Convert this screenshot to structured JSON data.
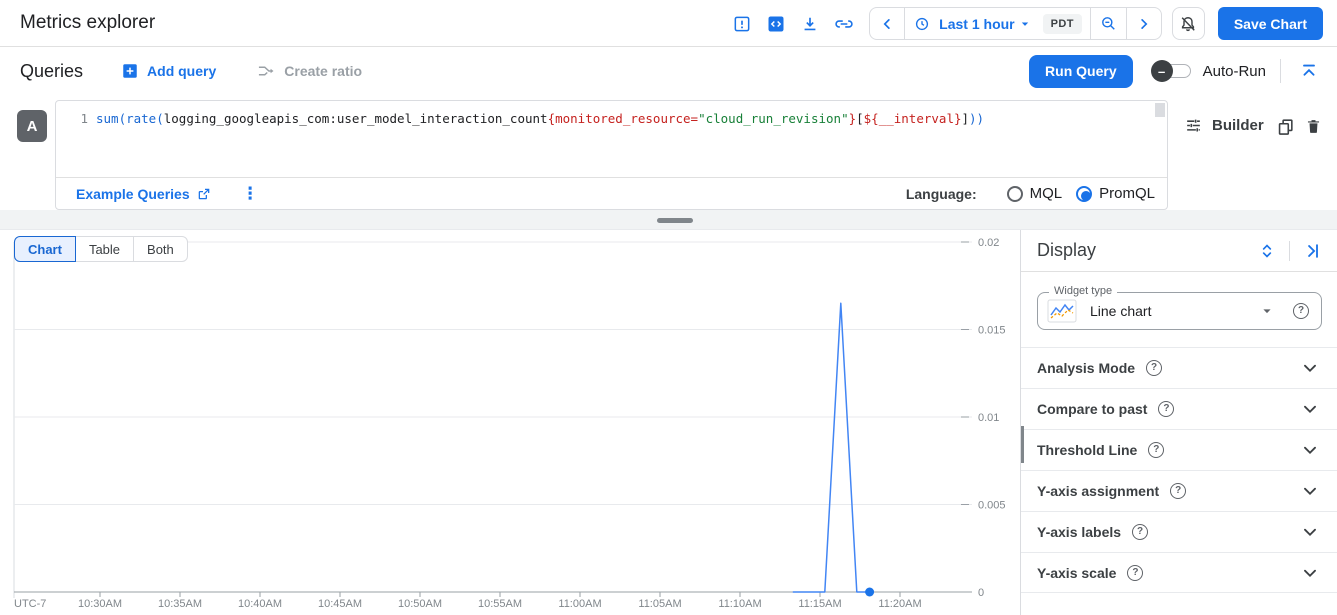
{
  "header": {
    "title": "Metrics explorer",
    "time_range_label": "Last 1 hour",
    "timezone_badge": "PDT",
    "save_button_label": "Save Chart"
  },
  "queries_bar": {
    "title": "Queries",
    "add_query_label": "Add query",
    "create_ratio_label": "Create ratio",
    "run_query_label": "Run Query",
    "auto_run_label": "Auto-Run"
  },
  "query_editor": {
    "query_letter": "A",
    "line_number": "1",
    "code_tokens": [
      {
        "text": "sum(",
        "color": "#1967d2"
      },
      {
        "text": "rate(",
        "color": "#1967d2"
      },
      {
        "text": "logging_googleapis_com:user_model_interaction_count",
        "color": "#202124"
      },
      {
        "text": "{monitored_resource=",
        "color": "#c5221f"
      },
      {
        "text": "\"cloud_run_revision\"",
        "color": "#188038"
      },
      {
        "text": "}",
        "color": "#c5221f"
      },
      {
        "text": "[",
        "color": "#202124"
      },
      {
        "text": "${__interval}",
        "color": "#c5221f"
      },
      {
        "text": "]",
        "color": "#202124"
      },
      {
        "text": "))",
        "color": "#1967d2"
      }
    ],
    "example_queries_label": "Example Queries",
    "language_label": "Language:",
    "languages": [
      {
        "label": "MQL",
        "selected": false
      },
      {
        "label": "PromQL",
        "selected": true
      }
    ],
    "builder_label": "Builder"
  },
  "view_tabs": [
    {
      "label": "Chart",
      "selected": true
    },
    {
      "label": "Table",
      "selected": false
    },
    {
      "label": "Both",
      "selected": false
    }
  ],
  "display_panel": {
    "title": "Display",
    "widget_type_legend": "Widget type",
    "widget_type_value": "Line chart",
    "sections": [
      {
        "label": "Analysis Mode"
      },
      {
        "label": "Compare to past"
      },
      {
        "label": "Threshold Line"
      },
      {
        "label": "Y-axis assignment"
      },
      {
        "label": "Y-axis labels"
      },
      {
        "label": "Y-axis scale"
      }
    ]
  },
  "icons": {
    "more_vert_glyph": "⋮",
    "toggle_off_glyph": "–",
    "help_glyph": "?"
  },
  "colors": {
    "accent_blue": "#1a73e8",
    "series_line_blue": "#4285f4",
    "selected_tab_bg": "#e8f0fe",
    "grid_gray": "#e8eaed",
    "axis_gray": "#9aa0a6"
  },
  "chart_data": {
    "type": "line",
    "title": "",
    "xlabel": "",
    "ylabel": "",
    "legend": "none",
    "grid": true,
    "x_axis": {
      "timezone_label": "UTC-7",
      "tick_labels": [
        "10:30AM",
        "10:35AM",
        "10:40AM",
        "10:45AM",
        "10:50AM",
        "10:55AM",
        "11:00AM",
        "11:05AM",
        "11:10AM",
        "11:15AM",
        "11:20AM"
      ],
      "tick_minutes": [
        5,
        10,
        15,
        20,
        25,
        30,
        35,
        40,
        45,
        50,
        55
      ],
      "domain_minutes": [
        0,
        60
      ],
      "domain_start_time": "10:25AM"
    },
    "y_axis": {
      "tick_labels": [
        "0",
        "0.005",
        "0.01",
        "0.015",
        "0.02"
      ],
      "tick_values": [
        0,
        0.005,
        0.01,
        0.015,
        0.02
      ],
      "domain": [
        0,
        0.02
      ]
    },
    "series": [
      {
        "color": "#4285f4",
        "points_minutes_value": [
          [
            48.3,
            0
          ],
          [
            50.3,
            0
          ],
          [
            51.3,
            0.0165
          ],
          [
            52.3,
            0
          ],
          [
            53.1,
            0
          ]
        ],
        "endpoint_dot": true,
        "dot_color": "#1a73e8"
      }
    ]
  }
}
